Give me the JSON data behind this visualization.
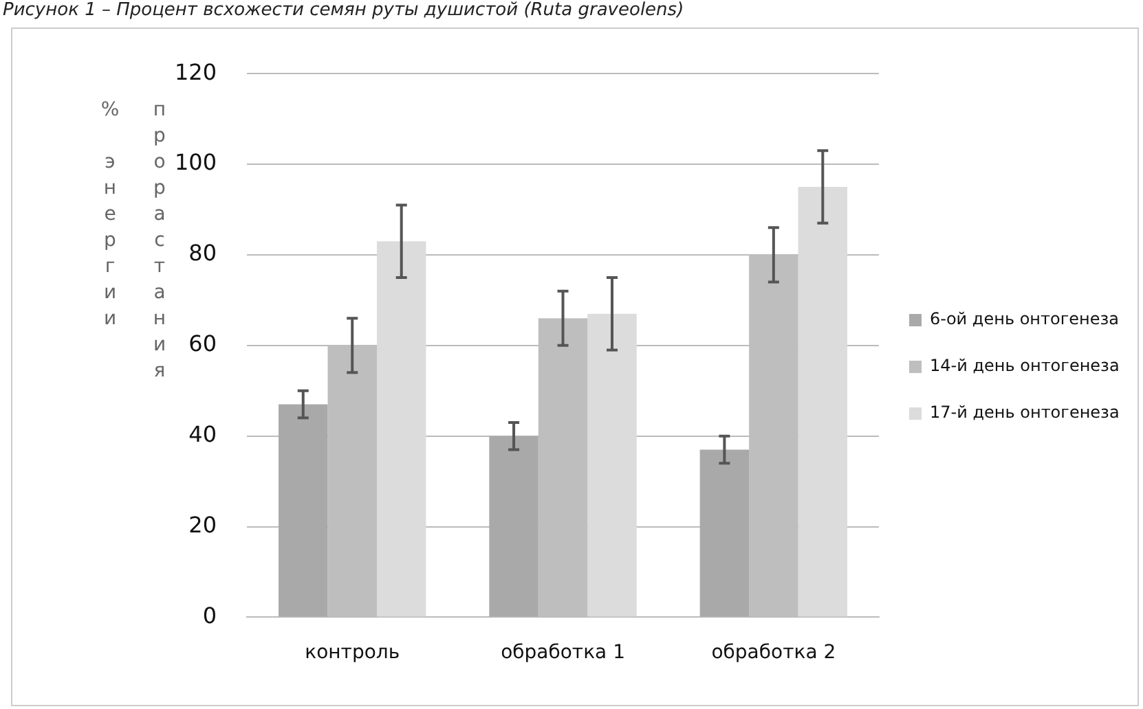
{
  "chart_data": {
    "type": "bar",
    "title": "Рисунок 1 – Процент всхожести семян руты душистой (Ruta graveolens)",
    "ylabel": "% энергии прорастания",
    "categories": [
      "контроль",
      "обработка 1",
      "обработка 2"
    ],
    "series": [
      {
        "name": "6-ой день онтогенеза",
        "color": "#a9a9a9",
        "values": [
          47,
          40,
          37
        ],
        "errors": [
          3,
          3,
          3
        ]
      },
      {
        "name": "14-й день онтогенеза",
        "color": "#bebebe",
        "values": [
          60,
          66,
          80
        ],
        "errors": [
          6,
          6,
          6
        ]
      },
      {
        "name": "17-й день онтогенеза",
        "color": "#dcdcdc",
        "values": [
          83,
          67,
          95
        ],
        "errors": [
          8,
          8,
          8
        ]
      }
    ],
    "ylim": [
      0,
      120
    ],
    "yticks": [
      0,
      20,
      40,
      60,
      80,
      100,
      120
    ],
    "grid": "y",
    "legend": "right"
  }
}
